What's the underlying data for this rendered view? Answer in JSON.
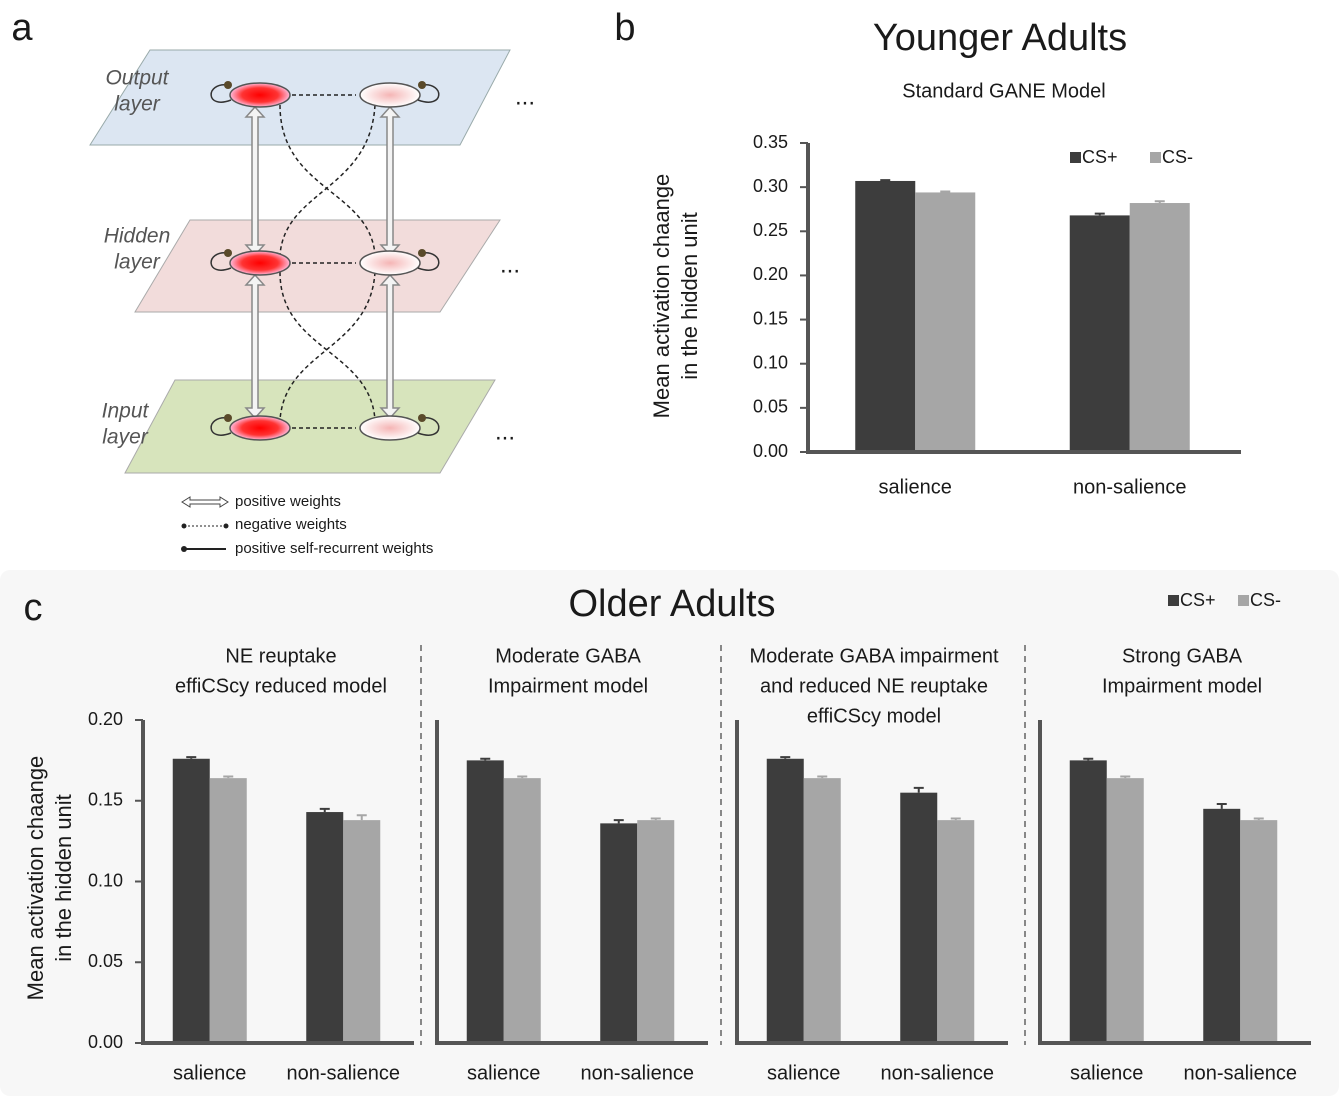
{
  "panel_labels": [
    "a",
    "b",
    "c"
  ],
  "diagram": {
    "layers": [
      [
        "Output",
        "layer"
      ],
      [
        "Hidden",
        "layer"
      ],
      [
        "Input",
        "layer"
      ]
    ],
    "ellipsis": "...",
    "legend": [
      "positive weights",
      "negative weights",
      "positive self-recurrent weights"
    ]
  },
  "chart_data": [
    {
      "type": "bar",
      "title": "Younger Adults",
      "subtitle": [
        "Standard GANE Model"
      ],
      "ylabel": [
        "Mean activation chaange",
        "in the hidden unit"
      ],
      "categories": [
        "salience",
        "non-salience"
      ],
      "series": [
        {
          "name": "CS+",
          "color": "#3d3d3d",
          "values": [
            0.307,
            0.268
          ],
          "error": [
            0.001,
            0.002
          ]
        },
        {
          "name": "CS-",
          "color": "#a6a6a6",
          "values": [
            0.294,
            0.282
          ],
          "error": [
            0.001,
            0.002
          ]
        }
      ],
      "ylim": [
        0,
        0.35
      ],
      "yticks": [
        {
          "value": 0,
          "label": "0.00"
        },
        0.05,
        {
          "value": 0.1,
          "label": "0.10"
        },
        0.15,
        {
          "value": 0.2,
          "label": "0.20"
        },
        0.25,
        {
          "value": 0.3,
          "label": "0.30"
        },
        0.35
      ],
      "legend": "upper right",
      "grid": false
    },
    {
      "type": "bar",
      "title": "Older Adults",
      "subtitle": [
        "NE reuptake",
        "effiCScy reduced model"
      ],
      "ylabel": [
        "Mean activation chaange",
        "in the hidden unit"
      ],
      "categories": [
        "salience",
        "non-salience"
      ],
      "series": [
        {
          "name": "CS+",
          "color": "#3d3d3d",
          "values": [
            0.176,
            0.143
          ],
          "error": [
            0.001,
            0.002
          ]
        },
        {
          "name": "CS-",
          "color": "#a6a6a6",
          "values": [
            0.164,
            0.138
          ],
          "error": [
            0.001,
            0.003
          ]
        }
      ],
      "ylim": [
        0,
        0.2
      ],
      "yticks": [
        {
          "value": 0,
          "label": "0.00"
        },
        0.05,
        {
          "value": 0.1,
          "label": "0.10"
        },
        0.15,
        {
          "value": 0.2,
          "label": "0.20"
        }
      ],
      "legend": "upper right",
      "grid": false
    },
    {
      "type": "bar",
      "subtitle": [
        "Moderate GABA",
        "Impairment model"
      ],
      "categories": [
        "salience",
        "non-salience"
      ],
      "series": [
        {
          "color": "#3d3d3d",
          "values": [
            0.175,
            0.136
          ],
          "error": [
            0.001,
            0.002
          ]
        },
        {
          "color": "#a6a6a6",
          "values": [
            0.164,
            0.138
          ],
          "error": [
            0.001,
            0.001
          ]
        }
      ],
      "ylim": [
        0,
        0.2
      ],
      "grid": false
    },
    {
      "type": "bar",
      "subtitle": [
        "Moderate GABA impairment",
        "and reduced NE reuptake",
        "effiCScy model"
      ],
      "categories": [
        "salience",
        "non-salience"
      ],
      "series": [
        {
          "color": "#3d3d3d",
          "values": [
            0.176,
            0.155
          ],
          "error": [
            0.001,
            0.003
          ]
        },
        {
          "color": "#a6a6a6",
          "values": [
            0.164,
            0.138
          ],
          "error": [
            0.001,
            0.001
          ]
        }
      ],
      "ylim": [
        0,
        0.2
      ],
      "grid": false
    },
    {
      "type": "bar",
      "subtitle": [
        "Strong GABA",
        "Impairment model"
      ],
      "categories": [
        "salience",
        "non-salience"
      ],
      "series": [
        {
          "color": "#3d3d3d",
          "values": [
            0.175,
            0.145
          ],
          "error": [
            0.001,
            0.003
          ]
        },
        {
          "color": "#a6a6a6",
          "values": [
            0.164,
            0.138
          ],
          "error": [
            0.001,
            0.001
          ]
        }
      ],
      "ylim": [
        0,
        0.2
      ],
      "grid": false
    }
  ]
}
